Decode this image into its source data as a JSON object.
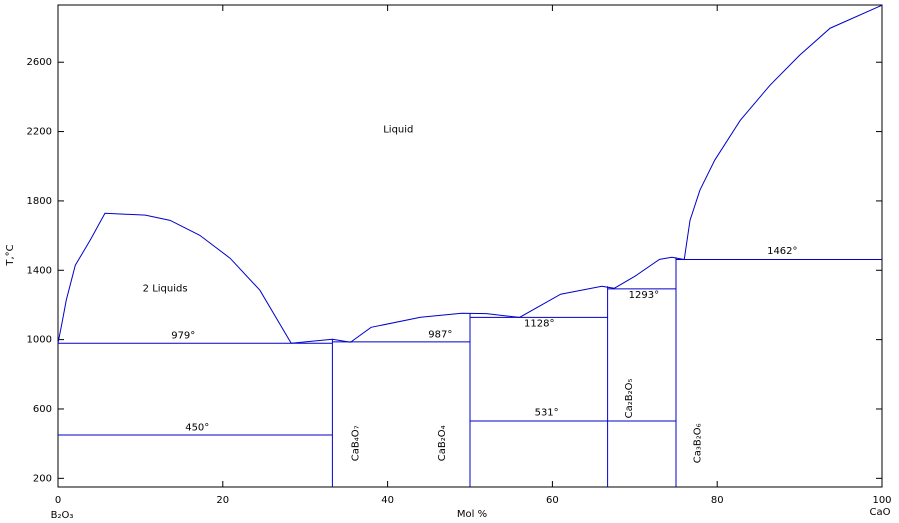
{
  "chart_data": {
    "type": "phase",
    "xlabel": "Mol %",
    "ylabel": "T,°C",
    "x_end_labels": [
      "B₂O₃",
      "CaO"
    ],
    "xlim": [
      0,
      100
    ],
    "ylim": [
      150,
      2930
    ],
    "xticks": [
      0,
      20,
      40,
      60,
      80,
      100
    ],
    "yticks": [
      200,
      600,
      1000,
      1400,
      1800,
      2200,
      2600
    ],
    "color": "#0000cc",
    "curves": [
      {
        "x": [
          0,
          0.5,
          1,
          2.1,
          3.9,
          5.7,
          10.6,
          13.6,
          17.2,
          20.9,
          24.5,
          28.3
        ],
        "y": [
          979,
          1100,
          1227,
          1429,
          1573,
          1729,
          1718,
          1688,
          1602,
          1469,
          1285,
          979
        ]
      },
      {
        "x": [
          28.3,
          33.3,
          35.5,
          38,
          44,
          49,
          52,
          56,
          61,
          66,
          67.5,
          70,
          73,
          74.5,
          76,
          76.7,
          77.9,
          79.7,
          82.8,
          86.4,
          90,
          93.7,
          100
        ],
        "y": [
          979,
          1002,
          985,
          1071,
          1129,
          1152,
          1150,
          1128,
          1262,
          1308,
          1296,
          1365,
          1463,
          1475,
          1462,
          1688,
          1862,
          2035,
          2265,
          2467,
          2640,
          2796,
          2929
        ]
      },
      {
        "x": [
          0,
          33.3
        ],
        "y": [
          979,
          979
        ]
      },
      {
        "x": [
          0,
          33.3
        ],
        "y": [
          450,
          450
        ]
      },
      {
        "x": [
          33.3,
          50
        ],
        "y": [
          987,
          987
        ]
      },
      {
        "x": [
          50,
          66.7
        ],
        "y": [
          1128,
          1128
        ]
      },
      {
        "x": [
          50,
          75
        ],
        "y": [
          531,
          531
        ]
      },
      {
        "x": [
          66.7,
          75
        ],
        "y": [
          1293,
          1293
        ]
      },
      {
        "x": [
          75,
          100
        ],
        "y": [
          1462,
          1462
        ]
      },
      {
        "x": [
          33.3,
          33.3
        ],
        "y": [
          150,
          1002
        ]
      },
      {
        "x": [
          50,
          50
        ],
        "y": [
          150,
          1152
        ]
      },
      {
        "x": [
          66.7,
          66.7
        ],
        "y": [
          150,
          1308
        ]
      },
      {
        "x": [
          75,
          75
        ],
        "y": [
          150,
          1475
        ]
      }
    ],
    "annotations": [
      {
        "text": "Liquid",
        "x": 41.3,
        "y": 2213
      },
      {
        "text": "2 Liquids",
        "x": 13,
        "y": 1296
      },
      {
        "text": "979°",
        "x": 15.2,
        "y": 1025
      },
      {
        "text": "450°",
        "x": 16.9,
        "y": 494
      },
      {
        "text": "987°",
        "x": 46.4,
        "y": 1031
      },
      {
        "text": "1128°",
        "x": 58.4,
        "y": 1094
      },
      {
        "text": "531°",
        "x": 59.3,
        "y": 581
      },
      {
        "text": "1293°",
        "x": 71.1,
        "y": 1256
      },
      {
        "text": "1462°",
        "x": 87.9,
        "y": 1510
      },
      {
        "text": "CaB₄O₇",
        "x": 36.1,
        "y": 402,
        "rotate": true
      },
      {
        "text": "CaB₂O₄",
        "x": 46.6,
        "y": 402,
        "rotate": true
      },
      {
        "text": "Ca₂B₂O₅",
        "x": 69.3,
        "y": 661,
        "rotate": true
      },
      {
        "text": "Ca₃B₂O₆",
        "x": 77.6,
        "y": 402,
        "rotate": true
      }
    ]
  }
}
